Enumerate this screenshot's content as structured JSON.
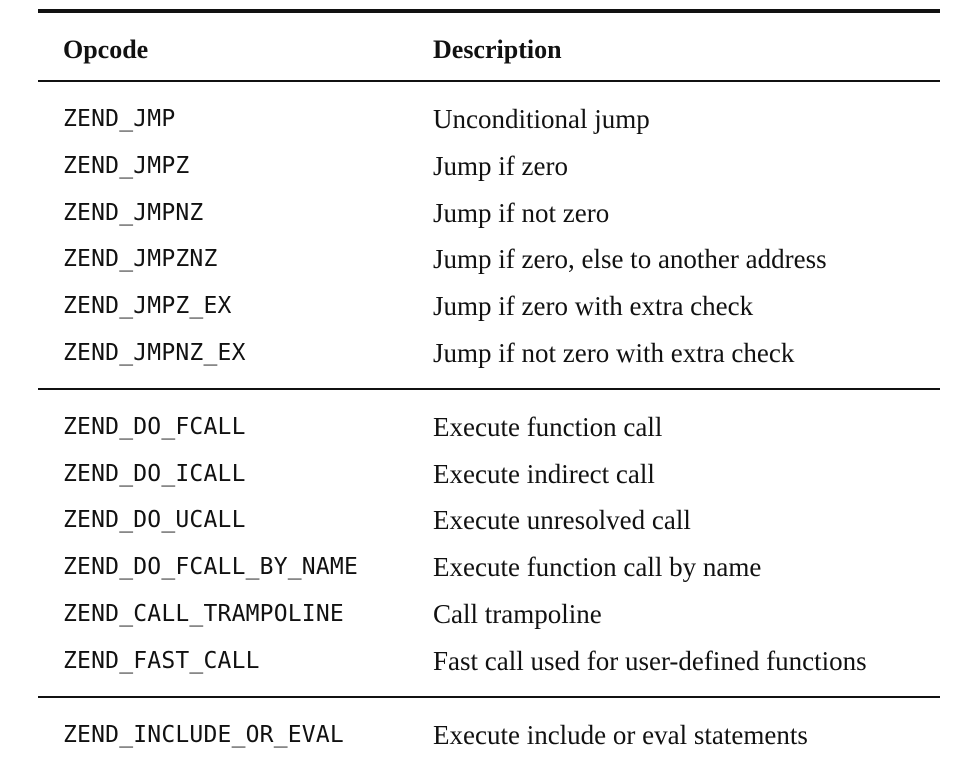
{
  "table": {
    "headers": {
      "opcode": "Opcode",
      "description": "Description"
    },
    "groups": [
      {
        "rows": [
          {
            "opcode": "ZEND_JMP",
            "description": "Unconditional jump"
          },
          {
            "opcode": "ZEND_JMPZ",
            "description": "Jump if zero"
          },
          {
            "opcode": "ZEND_JMPNZ",
            "description": "Jump if not zero"
          },
          {
            "opcode": "ZEND_JMPZNZ",
            "description": "Jump if zero, else to another address"
          },
          {
            "opcode": "ZEND_JMPZ_EX",
            "description": "Jump if zero with extra check"
          },
          {
            "opcode": "ZEND_JMPNZ_EX",
            "description": "Jump if not zero with extra check"
          }
        ]
      },
      {
        "rows": [
          {
            "opcode": "ZEND_DO_FCALL",
            "description": "Execute function call"
          },
          {
            "opcode": "ZEND_DO_ICALL",
            "description": "Execute indirect call"
          },
          {
            "opcode": "ZEND_DO_UCALL",
            "description": "Execute unresolved call"
          },
          {
            "opcode": "ZEND_DO_FCALL_BY_NAME",
            "description": "Execute function call by name"
          },
          {
            "opcode": "ZEND_CALL_TRAMPOLINE",
            "description": "Call trampoline"
          },
          {
            "opcode": "ZEND_FAST_CALL",
            "description": "Fast call used for user-defined functions"
          }
        ]
      },
      {
        "rows": [
          {
            "opcode": "ZEND_INCLUDE_OR_EVAL",
            "description": "Execute include or eval statements"
          }
        ]
      }
    ]
  }
}
